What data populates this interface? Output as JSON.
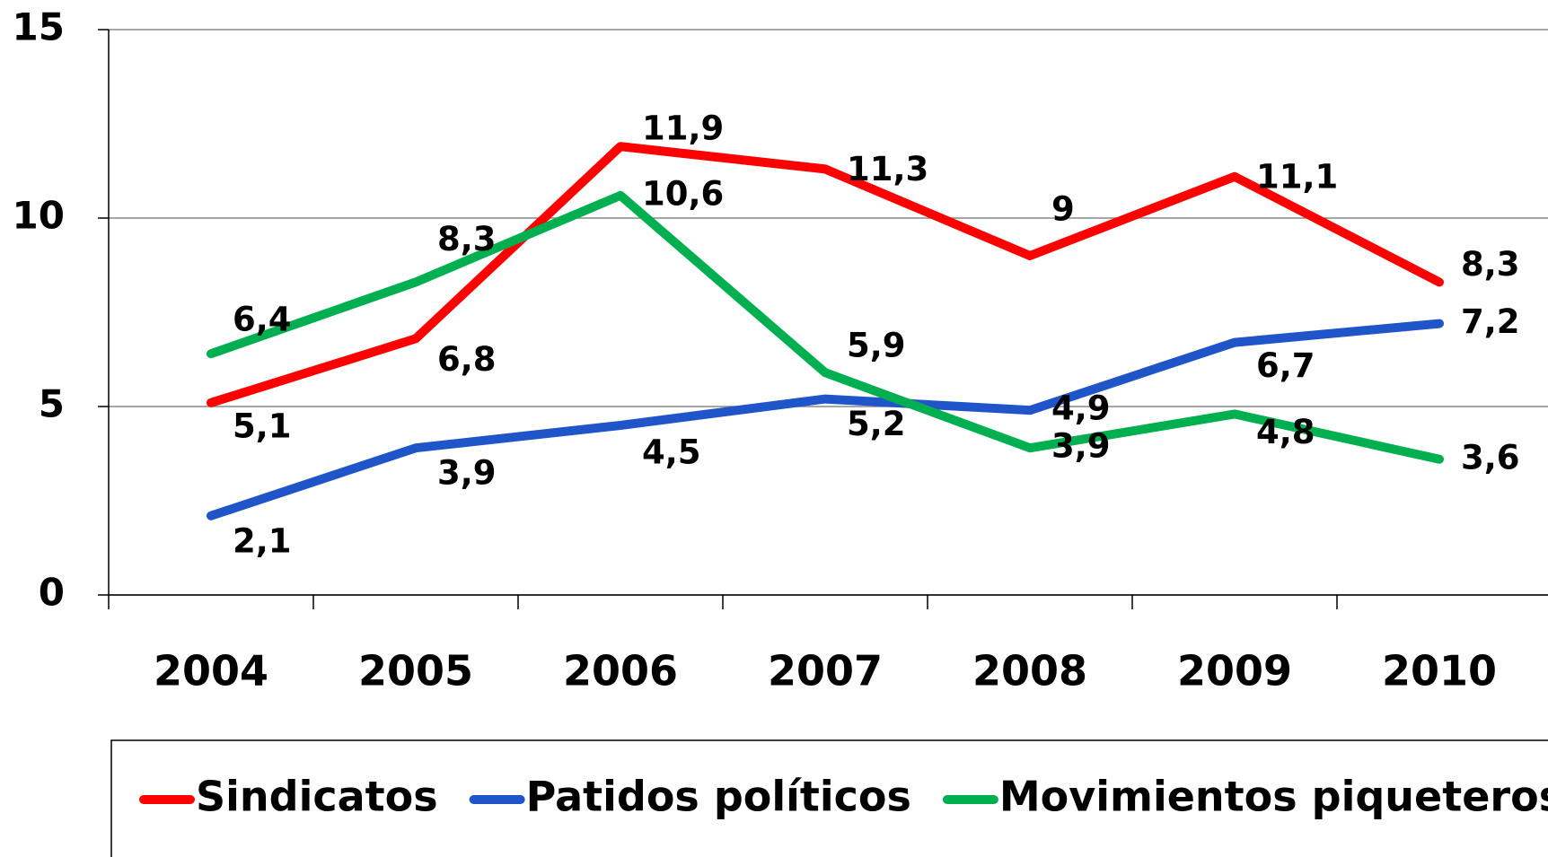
{
  "chart_data": {
    "type": "line",
    "categories": [
      "2004",
      "2005",
      "2006",
      "2007",
      "2008",
      "2009",
      "2010"
    ],
    "series": [
      {
        "name": "Sindicatos",
        "color": "#ff0000",
        "values": [
          5.1,
          6.8,
          11.9,
          11.3,
          9,
          11.1,
          8.3
        ],
        "value_labels": [
          "5,1",
          "6,8",
          "11,9",
          "11,3",
          "9",
          "11,1",
          "8,3"
        ]
      },
      {
        "name": "Patidos políticos",
        "color": "#1f55c8",
        "values": [
          2.1,
          3.9,
          4.5,
          5.2,
          4.9,
          6.7,
          7.2
        ],
        "value_labels": [
          "2,1",
          "3,9",
          "4,5",
          "5,2",
          "4,9",
          "6,7",
          "7,2"
        ]
      },
      {
        "name": "Movimientos piqueteros",
        "color": "#00b050",
        "values": [
          6.4,
          8.3,
          10.6,
          5.9,
          3.9,
          4.8,
          3.6
        ],
        "value_labels": [
          "6,4",
          "8,3",
          "10,6",
          "5,9",
          "3,9",
          "4,8",
          "3,6"
        ]
      }
    ],
    "ylim": [
      0,
      15
    ],
    "yticks": [
      0,
      5,
      10,
      15
    ],
    "grid": true,
    "legend": "bottom"
  }
}
